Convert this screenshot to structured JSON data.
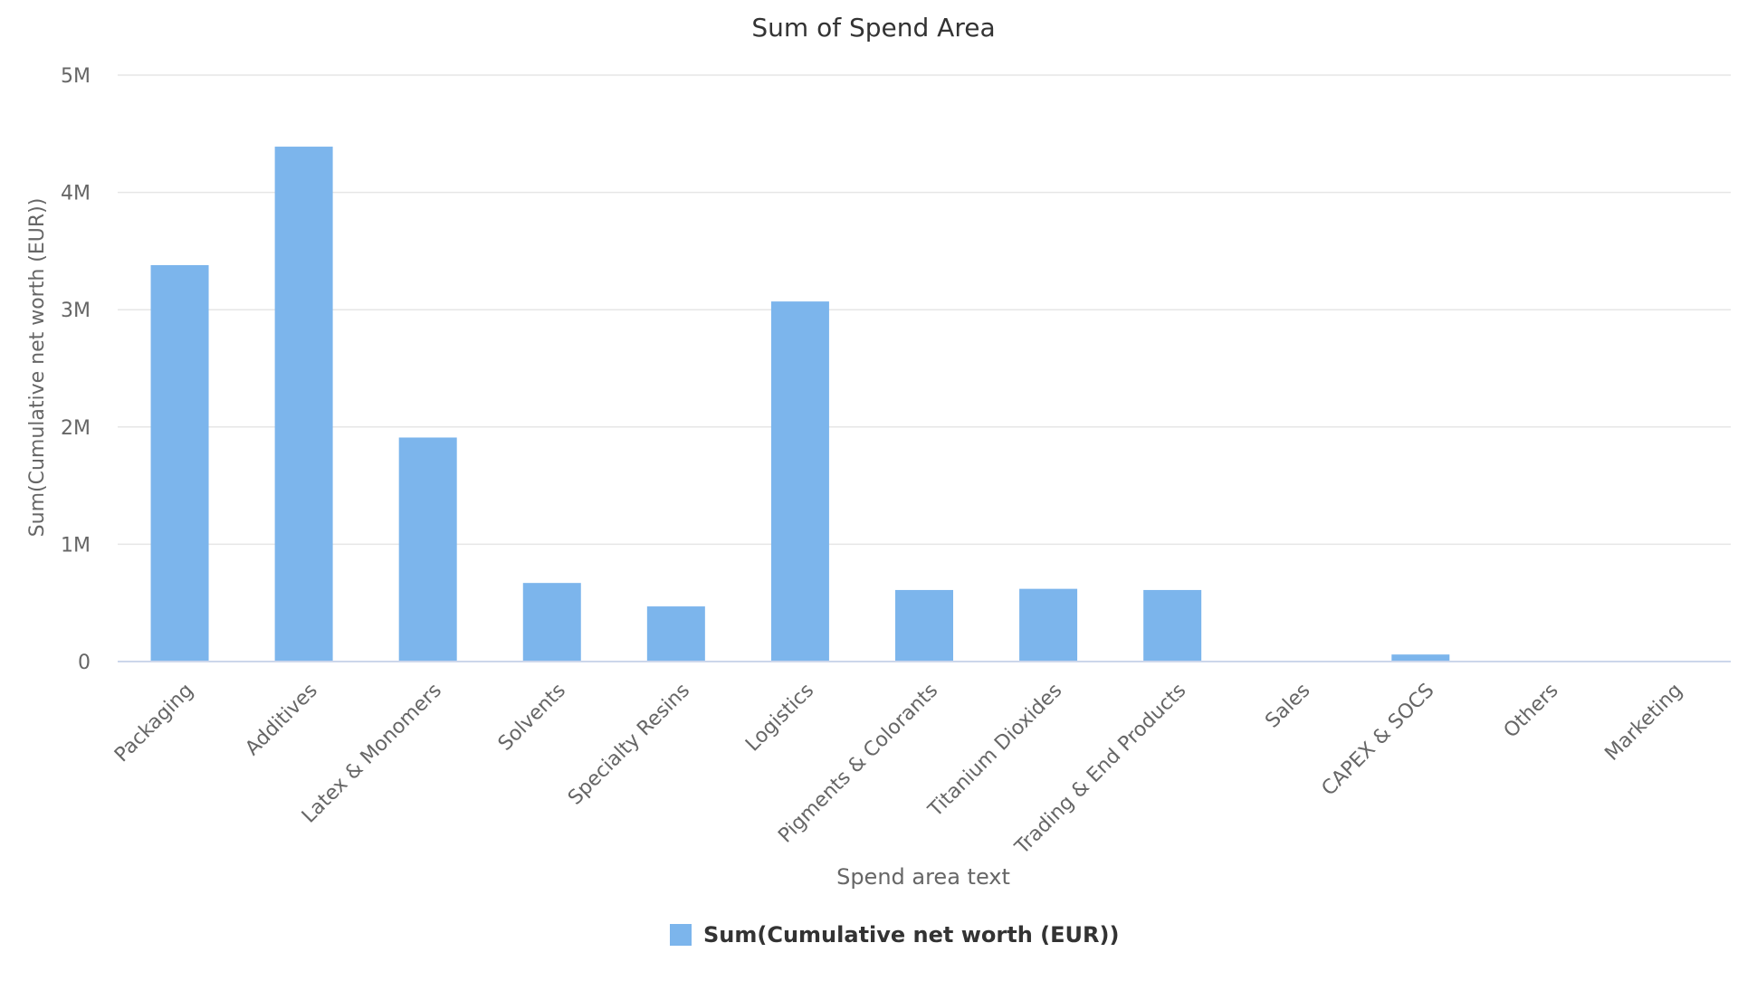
{
  "chart_data": {
    "type": "bar",
    "title": "Sum of Spend Area",
    "xlabel": "Spend area text",
    "ylabel": "Sum(Cumulative net worth (EUR))",
    "categories": [
      "Packaging",
      "Additives",
      "Latex & Monomers",
      "Solvents",
      "Specialty Resins",
      "Logistics",
      "Pigments & Colorants",
      "Titanium Dioxides",
      "Trading & End Products",
      "Sales",
      "CAPEX & SOCS",
      "Others",
      "Marketing"
    ],
    "series": [
      {
        "name": "Sum(Cumulative net worth (EUR))",
        "values": [
          3380000,
          4390000,
          1910000,
          670000,
          470000,
          3070000,
          610000,
          620000,
          610000,
          0,
          60000,
          0,
          0
        ]
      }
    ],
    "ylim": [
      0,
      5000000
    ],
    "yticks": [
      0,
      1000000,
      2000000,
      3000000,
      4000000,
      5000000
    ],
    "ytick_labels": [
      "0",
      "1M",
      "2M",
      "3M",
      "4M",
      "5M"
    ],
    "grid": true,
    "legend": "bottom-center",
    "colors": {
      "bar": "#7cb5ec",
      "grid": "#e6e6e6",
      "axis": "#ccd6eb",
      "text": "#666666",
      "title": "#333333"
    }
  }
}
